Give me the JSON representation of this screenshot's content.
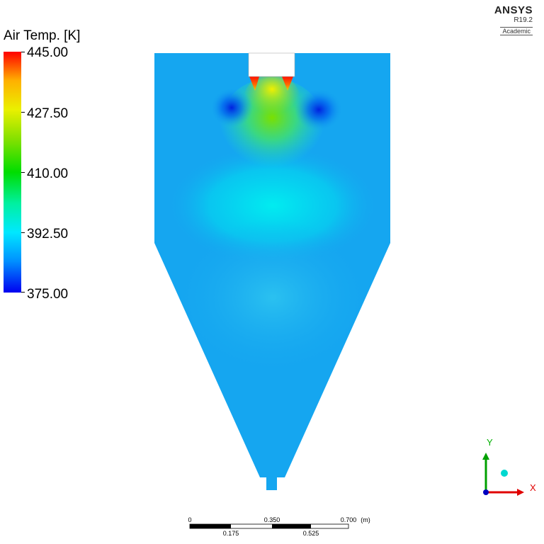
{
  "legend": {
    "title": "Air Temp. [K]",
    "ticks": [
      "445.00",
      "427.50",
      "410.00",
      "392.50",
      "375.00"
    ],
    "min": 375.0,
    "max": 445.0
  },
  "logo": {
    "name": "ANSYS",
    "version": "R19.2",
    "edition": "Academic"
  },
  "scale_bar": {
    "top_labels": [
      "0",
      "0.350",
      "0.700"
    ],
    "bottom_labels": [
      "0.175",
      "0.525"
    ],
    "unit": "(m)"
  },
  "triad": {
    "y_label": "Y",
    "x_label": "X",
    "colors": {
      "y": "#00a000",
      "x": "#e00000",
      "z": "#0000c0",
      "sphere": "#00d8d0"
    }
  },
  "colors": {
    "background_field": "#15a6f0",
    "inlet_gap": "#ffffff"
  }
}
